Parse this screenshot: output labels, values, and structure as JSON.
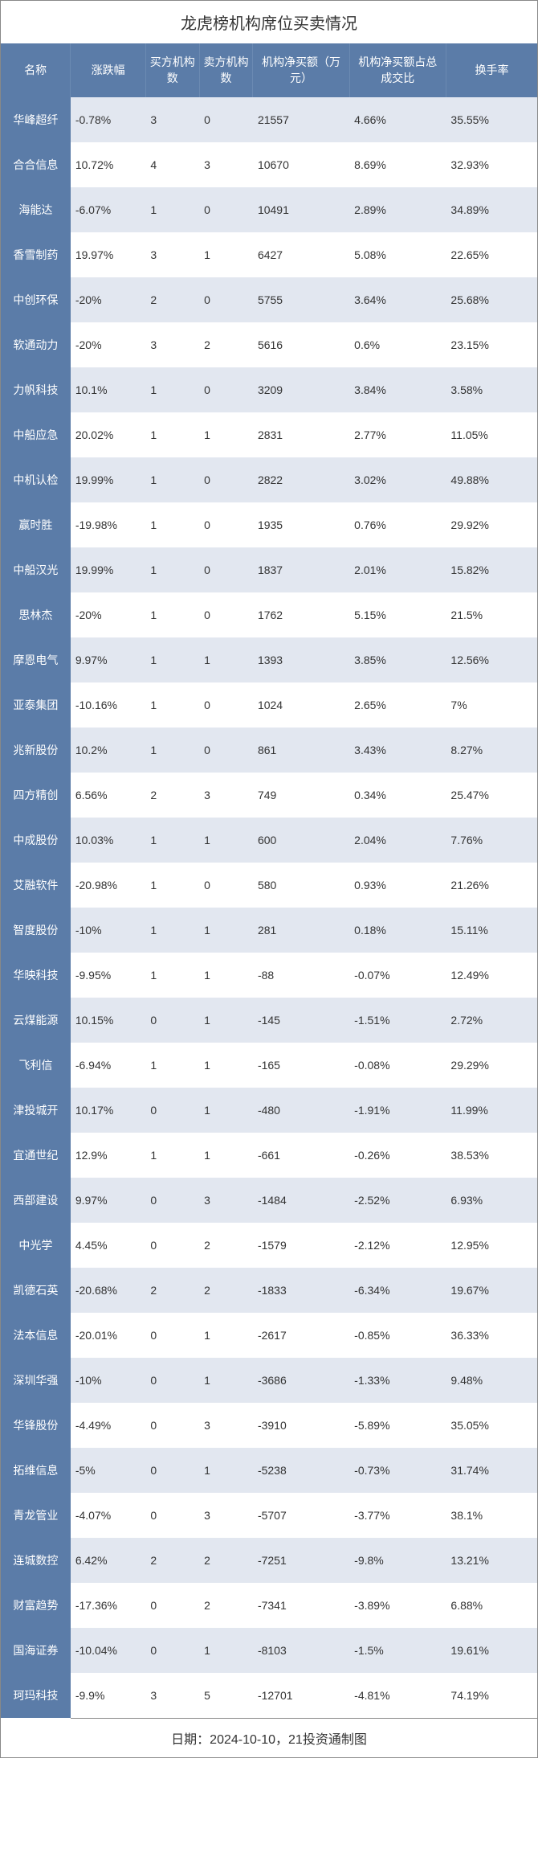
{
  "title": "龙虎榜机构席位买卖情况",
  "footer": "日期：2024-10-10，21投资通制图",
  "colors": {
    "header_bg": "#5b7ca8",
    "header_text": "#ffffff",
    "row_even_bg": "#e2e7f0",
    "row_odd_bg": "#ffffff",
    "body_text": "#333333",
    "border": "#888888"
  },
  "columns": [
    "名称",
    "涨跌幅",
    "买方机构数",
    "卖方机构数",
    "机构净买额（万元）",
    "机构净买额占总成交比",
    "换手率"
  ],
  "column_widths_pct": [
    13,
    14,
    10,
    10,
    18,
    18,
    17
  ],
  "rows": [
    [
      "华峰超纤",
      "-0.78%",
      "3",
      "0",
      "21557",
      "4.66%",
      "35.55%"
    ],
    [
      "合合信息",
      "10.72%",
      "4",
      "3",
      "10670",
      "8.69%",
      "32.93%"
    ],
    [
      "海能达",
      "-6.07%",
      "1",
      "0",
      "10491",
      "2.89%",
      "34.89%"
    ],
    [
      "香雪制药",
      "19.97%",
      "3",
      "1",
      "6427",
      "5.08%",
      "22.65%"
    ],
    [
      "中创环保",
      "-20%",
      "2",
      "0",
      "5755",
      "3.64%",
      "25.68%"
    ],
    [
      "软通动力",
      "-20%",
      "3",
      "2",
      "5616",
      "0.6%",
      "23.15%"
    ],
    [
      "力帆科技",
      "10.1%",
      "1",
      "0",
      "3209",
      "3.84%",
      "3.58%"
    ],
    [
      "中船应急",
      "20.02%",
      "1",
      "1",
      "2831",
      "2.77%",
      "11.05%"
    ],
    [
      "中机认检",
      "19.99%",
      "1",
      "0",
      "2822",
      "3.02%",
      "49.88%"
    ],
    [
      "赢时胜",
      "-19.98%",
      "1",
      "0",
      "1935",
      "0.76%",
      "29.92%"
    ],
    [
      "中船汉光",
      "19.99%",
      "1",
      "0",
      "1837",
      "2.01%",
      "15.82%"
    ],
    [
      "思林杰",
      "-20%",
      "1",
      "0",
      "1762",
      "5.15%",
      "21.5%"
    ],
    [
      "摩恩电气",
      "9.97%",
      "1",
      "1",
      "1393",
      "3.85%",
      "12.56%"
    ],
    [
      "亚泰集团",
      "-10.16%",
      "1",
      "0",
      "1024",
      "2.65%",
      "7%"
    ],
    [
      "兆新股份",
      "10.2%",
      "1",
      "0",
      "861",
      "3.43%",
      "8.27%"
    ],
    [
      "四方精创",
      "6.56%",
      "2",
      "3",
      "749",
      "0.34%",
      "25.47%"
    ],
    [
      "中成股份",
      "10.03%",
      "1",
      "1",
      "600",
      "2.04%",
      "7.76%"
    ],
    [
      "艾融软件",
      "-20.98%",
      "1",
      "0",
      "580",
      "0.93%",
      "21.26%"
    ],
    [
      "智度股份",
      "-10%",
      "1",
      "1",
      "281",
      "0.18%",
      "15.11%"
    ],
    [
      "华映科技",
      "-9.95%",
      "1",
      "1",
      "-88",
      "-0.07%",
      "12.49%"
    ],
    [
      "云煤能源",
      "10.15%",
      "0",
      "1",
      "-145",
      "-1.51%",
      "2.72%"
    ],
    [
      "飞利信",
      "-6.94%",
      "1",
      "1",
      "-165",
      "-0.08%",
      "29.29%"
    ],
    [
      "津投城开",
      "10.17%",
      "0",
      "1",
      "-480",
      "-1.91%",
      "11.99%"
    ],
    [
      "宜通世纪",
      "12.9%",
      "1",
      "1",
      "-661",
      "-0.26%",
      "38.53%"
    ],
    [
      "西部建设",
      "9.97%",
      "0",
      "3",
      "-1484",
      "-2.52%",
      "6.93%"
    ],
    [
      "中光学",
      "4.45%",
      "0",
      "2",
      "-1579",
      "-2.12%",
      "12.95%"
    ],
    [
      "凯德石英",
      "-20.68%",
      "2",
      "2",
      "-1833",
      "-6.34%",
      "19.67%"
    ],
    [
      "法本信息",
      "-20.01%",
      "0",
      "1",
      "-2617",
      "-0.85%",
      "36.33%"
    ],
    [
      "深圳华强",
      "-10%",
      "0",
      "1",
      "-3686",
      "-1.33%",
      "9.48%"
    ],
    [
      "华锋股份",
      "-4.49%",
      "0",
      "3",
      "-3910",
      "-5.89%",
      "35.05%"
    ],
    [
      "拓维信息",
      "-5%",
      "0",
      "1",
      "-5238",
      "-0.73%",
      "31.74%"
    ],
    [
      "青龙管业",
      "-4.07%",
      "0",
      "3",
      "-5707",
      "-3.77%",
      "38.1%"
    ],
    [
      "连城数控",
      "6.42%",
      "2",
      "2",
      "-7251",
      "-9.8%",
      "13.21%"
    ],
    [
      "财富趋势",
      "-17.36%",
      "0",
      "2",
      "-7341",
      "-3.89%",
      "6.88%"
    ],
    [
      "国海证券",
      "-10.04%",
      "0",
      "1",
      "-8103",
      "-1.5%",
      "19.61%"
    ],
    [
      "珂玛科技",
      "-9.9%",
      "3",
      "5",
      "-12701",
      "-4.81%",
      "74.19%"
    ]
  ]
}
